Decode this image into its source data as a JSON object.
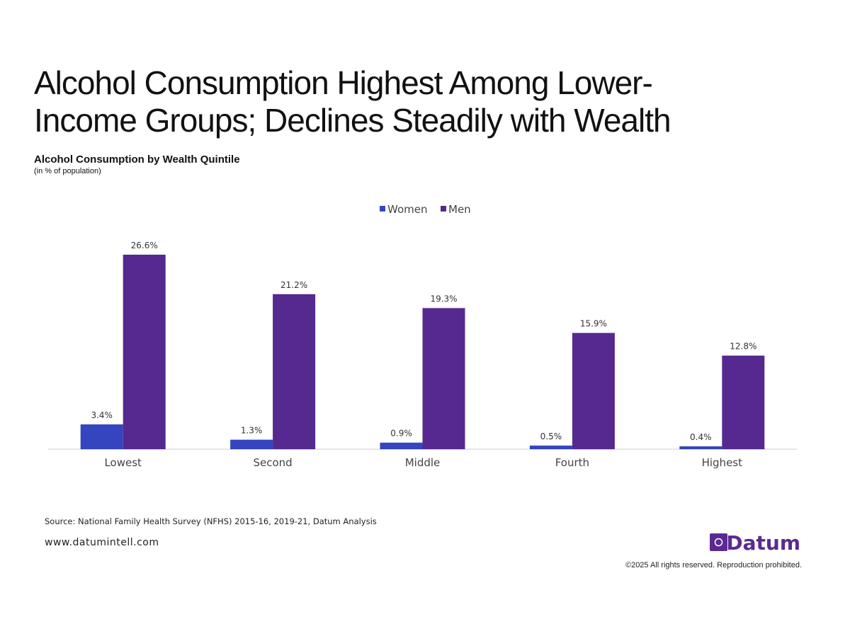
{
  "chart_data": {
    "type": "bar",
    "title": [
      "Alcohol Consumption Highest Among Lower-",
      "Income Groups; Declines Steadily with Wealth"
    ],
    "subtitle": "Alcohol Consumption by Wealth Quintile",
    "unit_note": "(in % of population)",
    "categories": [
      "Lowest",
      "Second",
      "Middle",
      "Fourth",
      "Highest"
    ],
    "series": [
      {
        "name": "Women",
        "color": "#3545c0",
        "values": [
          3.4,
          1.3,
          0.9,
          0.5,
          0.4
        ],
        "value_labels": [
          "3.4%",
          "1.3%",
          "0.9%",
          "0.5%",
          "0.4%"
        ]
      },
      {
        "name": "Men",
        "color": "#55298f",
        "values": [
          26.6,
          21.2,
          19.3,
          15.9,
          12.8
        ],
        "value_labels": [
          "26.6%",
          "21.2%",
          "19.3%",
          "15.9%",
          "12.8%"
        ]
      }
    ],
    "legend": "top"
  },
  "source": "Source: National Family Health Survey (NFHS) 2015-16, 2019-21, Datum Analysis",
  "website": "www.datumintell.com",
  "brand": "Datum",
  "copyright": "©2025 All rights reserved. Reproduction prohibited."
}
